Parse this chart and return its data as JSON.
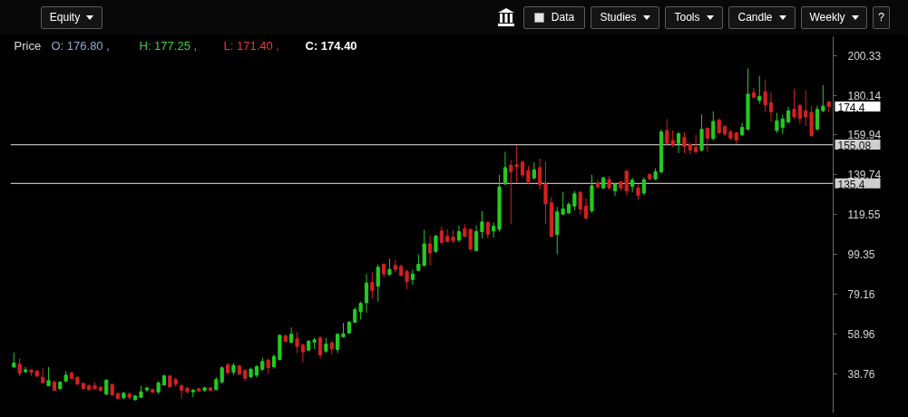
{
  "chart_data": {
    "type": "candlestick",
    "categories": [
      null,
      null,
      null,
      null,
      null,
      null,
      null,
      null,
      null,
      null,
      null,
      null,
      null,
      null,
      null,
      null,
      null,
      null,
      null,
      null,
      null,
      null,
      null,
      null,
      null,
      null,
      null,
      null,
      null,
      null,
      null,
      null,
      null,
      null,
      null,
      null,
      null,
      null,
      null,
      null,
      null,
      null,
      null,
      null,
      null,
      null,
      null,
      null,
      null,
      null,
      null,
      null,
      null,
      null,
      null,
      null,
      null,
      null,
      null,
      null,
      null,
      null,
      null,
      null,
      null,
      null,
      null,
      null,
      null,
      null,
      null,
      null,
      null,
      null,
      null,
      null,
      null,
      null,
      null,
      null,
      null,
      null,
      null,
      null,
      null,
      null,
      null,
      null,
      null,
      null,
      null,
      null,
      null,
      null,
      null,
      null,
      null,
      null,
      null,
      null,
      null,
      null,
      null,
      null,
      null,
      null,
      null,
      null,
      null,
      null,
      null,
      null,
      null,
      null,
      null,
      null,
      null,
      null,
      null,
      null,
      null,
      null,
      null,
      null,
      null,
      null,
      null,
      null,
      null,
      null,
      null,
      null,
      null,
      null,
      null,
      null,
      null,
      null,
      null,
      null,
      null,
      null
    ],
    "ohlc": [
      [
        42.1,
        49.5,
        41.8,
        44.1
      ],
      [
        43.6,
        46.4,
        37.5,
        39.0
      ],
      [
        39.8,
        42.1,
        39.0,
        40.7
      ],
      [
        40.6,
        41.0,
        37.5,
        39.5
      ],
      [
        40.1,
        40.6,
        37.2,
        37.5
      ],
      [
        36.9,
        41.5,
        33.8,
        34.1
      ],
      [
        32.6,
        42.1,
        32.3,
        35.2
      ],
      [
        34.4,
        35.4,
        29.8,
        30.3
      ],
      [
        31.1,
        34.9,
        30.7,
        34.4
      ],
      [
        34.9,
        40.0,
        34.4,
        38.0
      ],
      [
        39.0,
        40.0,
        35.7,
        36.4
      ],
      [
        36.9,
        37.5,
        33.1,
        33.4
      ],
      [
        33.8,
        34.1,
        30.7,
        31.1
      ],
      [
        32.6,
        33.4,
        29.8,
        30.7
      ],
      [
        32.6,
        34.4,
        30.7,
        31.1
      ],
      [
        31.8,
        32.6,
        29.8,
        30.2
      ],
      [
        28.3,
        35.9,
        28.0,
        35.4
      ],
      [
        33.2,
        33.8,
        27.5,
        28.0
      ],
      [
        28.6,
        29.2,
        25.7,
        26.1
      ],
      [
        26.5,
        29.5,
        25.7,
        28.8
      ],
      [
        28.3,
        29.5,
        25.7,
        26.7
      ],
      [
        25.5,
        27.9,
        25.2,
        27.4
      ],
      [
        26.7,
        32.6,
        26.5,
        29.5
      ],
      [
        30.5,
        32.3,
        29.5,
        31.4
      ],
      [
        30.7,
        31.1,
        28.8,
        29.4
      ],
      [
        29.5,
        34.9,
        28.4,
        34.1
      ],
      [
        33.1,
        38.3,
        32.6,
        37.6
      ],
      [
        37.6,
        38.0,
        31.5,
        32.1
      ],
      [
        35.7,
        36.7,
        32.1,
        33.4
      ],
      [
        32.7,
        33.1,
        26.0,
        30.3
      ],
      [
        31.2,
        32.1,
        28.7,
        29.6
      ],
      [
        29.5,
        31.1,
        26.8,
        30.3
      ],
      [
        31.1,
        31.5,
        29.4,
        30.0
      ],
      [
        30.3,
        32.1,
        29.5,
        31.5
      ],
      [
        31.5,
        32.1,
        29.6,
        30.3
      ],
      [
        30.6,
        37.0,
        30.3,
        35.7
      ],
      [
        34.6,
        42.6,
        33.6,
        41.7
      ],
      [
        43.3,
        44.1,
        38.7,
        39.2
      ],
      [
        39.5,
        44.1,
        38.0,
        42.9
      ],
      [
        42.6,
        43.3,
        38.0,
        38.6
      ],
      [
        40.3,
        41.0,
        34.9,
        36.4
      ],
      [
        37.2,
        41.8,
        36.4,
        41.0
      ],
      [
        38.0,
        43.3,
        36.7,
        42.3
      ],
      [
        41.0,
        46.9,
        40.3,
        44.9
      ],
      [
        45.6,
        46.4,
        38.7,
        41.8
      ],
      [
        42.3,
        48.4,
        41.3,
        47.5
      ],
      [
        45.9,
        58.7,
        45.6,
        58.2
      ],
      [
        57.9,
        58.7,
        54.8,
        55.1
      ],
      [
        54.7,
        62.2,
        54.1,
        58.8
      ],
      [
        56.4,
        59.9,
        49.2,
        52.5
      ],
      [
        53.3,
        54.1,
        44.6,
        49.8
      ],
      [
        50.7,
        55.6,
        50.2,
        55.3
      ],
      [
        54.8,
        56.9,
        51.3,
        55.9
      ],
      [
        56.9,
        57.9,
        46.4,
        48.2
      ],
      [
        50.2,
        56.9,
        49.2,
        53.8
      ],
      [
        54.4,
        55.6,
        48.7,
        51.3
      ],
      [
        51.0,
        59.4,
        49.2,
        58.7
      ],
      [
        57.5,
        64.5,
        57.1,
        59.0
      ],
      [
        59.4,
        65.6,
        59.0,
        64.8
      ],
      [
        64.8,
        72.5,
        64.5,
        71.3
      ],
      [
        70.2,
        75.3,
        66.3,
        74.4
      ],
      [
        74.8,
        89.4,
        69.7,
        84.8
      ],
      [
        85.1,
        90.2,
        76.8,
        81.0
      ],
      [
        83.2,
        94.3,
        75.3,
        92.8
      ],
      [
        94.3,
        94.8,
        87.5,
        89.4
      ],
      [
        89.1,
        97.1,
        88.6,
        91.7
      ],
      [
        93.7,
        96.7,
        90.2,
        91.7
      ],
      [
        93.2,
        94.3,
        88.2,
        88.6
      ],
      [
        90.6,
        91.7,
        81.7,
        85.5
      ],
      [
        86.6,
        91.7,
        83.9,
        89.4
      ],
      [
        91.2,
        99.4,
        90.9,
        94.3
      ],
      [
        93.7,
        111.7,
        93.2,
        104.7
      ],
      [
        104.7,
        109.0,
        93.7,
        100.1
      ],
      [
        100.9,
        109.4,
        100.1,
        108.6
      ],
      [
        111.2,
        113.6,
        104.4,
        105.5
      ],
      [
        108.6,
        112.1,
        105.5,
        105.9
      ],
      [
        108.1,
        111.7,
        105.0,
        106.3
      ],
      [
        106.6,
        114.0,
        105.5,
        110.9
      ],
      [
        112.4,
        114.7,
        107.8,
        108.6
      ],
      [
        112.1,
        112.4,
        101.3,
        102.0
      ],
      [
        101.3,
        114.0,
        100.9,
        110.9
      ],
      [
        110.9,
        121.3,
        107.5,
        115.8
      ],
      [
        115.5,
        116.3,
        107.5,
        109.6
      ],
      [
        111.2,
        115.5,
        107.8,
        113.6
      ],
      [
        112.1,
        139.7,
        110.9,
        133.6
      ],
      [
        135.1,
        151.5,
        134.7,
        143.4
      ],
      [
        144.6,
        147.4,
        114.7,
        141.3
      ],
      [
        144.9,
        154.6,
        135.7,
        143.9
      ],
      [
        146.2,
        146.9,
        138.2,
        139.7
      ],
      [
        141.9,
        144.3,
        135.1,
        136.2
      ],
      [
        138.2,
        146.2,
        137.3,
        142.3
      ],
      [
        143.4,
        148.0,
        132.4,
        134.7
      ],
      [
        135.1,
        146.5,
        114.7,
        125.0
      ],
      [
        125.5,
        128.5,
        107.8,
        108.6
      ],
      [
        109.4,
        123.4,
        99.4,
        120.9
      ],
      [
        119.8,
        131.1,
        119.3,
        122.4
      ],
      [
        120.4,
        125.9,
        119.8,
        124.7
      ],
      [
        123.9,
        131.6,
        121.6,
        130.1
      ],
      [
        130.8,
        131.6,
        119.6,
        122.4
      ],
      [
        123.9,
        127.8,
        117.0,
        117.8
      ],
      [
        121.5,
        139.7,
        120.5,
        134.2
      ],
      [
        135.4,
        137.3,
        132.7,
        133.6
      ],
      [
        133.1,
        138.8,
        132.4,
        138.2
      ],
      [
        137.3,
        139.3,
        132.1,
        133.1
      ],
      [
        131.6,
        135.4,
        129.0,
        135.1
      ],
      [
        136.2,
        136.7,
        131.6,
        133.1
      ],
      [
        141.6,
        142.3,
        129.3,
        131.6
      ],
      [
        133.9,
        138.2,
        130.8,
        137.0
      ],
      [
        133.1,
        135.1,
        127.0,
        129.3
      ],
      [
        130.5,
        138.5,
        129.3,
        137.3
      ],
      [
        140.0,
        140.3,
        137.0,
        137.7
      ],
      [
        137.7,
        143.1,
        137.0,
        141.3
      ],
      [
        141.3,
        162.8,
        140.3,
        161.5
      ],
      [
        162.3,
        168.0,
        154.6,
        155.7
      ],
      [
        157.2,
        162.3,
        153.8,
        155.1
      ],
      [
        155.7,
        161.5,
        150.8,
        160.7
      ],
      [
        158.8,
        161.5,
        150.8,
        154.2
      ],
      [
        155.1,
        156.1,
        150.0,
        152.3
      ],
      [
        153.8,
        160.0,
        150.5,
        151.5
      ],
      [
        152.3,
        170.4,
        151.5,
        162.8
      ],
      [
        163.4,
        163.8,
        151.5,
        158.4
      ],
      [
        158.2,
        172.0,
        157.2,
        166.9
      ],
      [
        167.6,
        168.4,
        160.5,
        161.1
      ],
      [
        164.2,
        165.1,
        159.5,
        160.5
      ],
      [
        161.5,
        162.6,
        157.4,
        158.4
      ],
      [
        161.1,
        161.5,
        155.4,
        157.4
      ],
      [
        160.0,
        166.1,
        159.5,
        163.8
      ],
      [
        163.0,
        193.8,
        162.3,
        180.7
      ],
      [
        181.5,
        183.8,
        178.4,
        179.2
      ],
      [
        177.6,
        190.0,
        175.8,
        179.5
      ],
      [
        182.0,
        188.1,
        171.5,
        175.3
      ],
      [
        176.4,
        181.5,
        166.6,
        171.8
      ],
      [
        162.3,
        171.2,
        161.1,
        167.2
      ],
      [
        163.8,
        170.3,
        160.5,
        168.1
      ],
      [
        166.6,
        174.3,
        165.7,
        172.3
      ],
      [
        173.0,
        183.5,
        168.4,
        169.2
      ],
      [
        174.9,
        176.1,
        165.7,
        168.4
      ],
      [
        172.3,
        182.6,
        164.6,
        169.2
      ],
      [
        171.5,
        174.6,
        159.2,
        159.6
      ],
      [
        163.0,
        174.9,
        162.3,
        173.0
      ],
      [
        172.3,
        185.3,
        171.5,
        174.6
      ],
      [
        176.8,
        177.25,
        171.4,
        174.4
      ]
    ],
    "colors": [
      "#22cc22",
      "#d42020",
      "#22cc22",
      "#d42020",
      "#d42020",
      "#d42020",
      "#22cc22",
      "#d42020",
      "#22cc22",
      "#22cc22",
      "#d42020",
      "#d42020",
      "#d42020",
      "#d42020",
      "#d42020",
      "#d42020",
      "#22cc22",
      "#d42020",
      "#d42020",
      "#22cc22",
      "#d42020",
      "#22cc22",
      "#22cc22",
      "#22cc22",
      "#d42020",
      "#22cc22",
      "#22cc22",
      "#d42020",
      "#d42020",
      "#d42020",
      "#d42020",
      "#22cc22",
      "#d42020",
      "#22cc22",
      "#d42020",
      "#22cc22",
      "#22cc22",
      "#d42020",
      "#22cc22",
      "#d42020",
      "#d42020",
      "#22cc22",
      "#22cc22",
      "#22cc22",
      "#d42020",
      "#22cc22",
      "#22cc22",
      "#d42020",
      "#22cc22",
      "#d42020",
      "#d42020",
      "#22cc22",
      "#22cc22",
      "#d42020",
      "#22cc22",
      "#d42020",
      "#22cc22",
      "#22cc22",
      "#22cc22",
      "#22cc22",
      "#22cc22",
      "#22cc22",
      "#d42020",
      "#22cc22",
      "#d42020",
      "#22cc22",
      "#d42020",
      "#d42020",
      "#d42020",
      "#22cc22",
      "#22cc22",
      "#22cc22",
      "#d42020",
      "#22cc22",
      "#d42020",
      "#d42020",
      "#d42020",
      "#22cc22",
      "#d42020",
      "#d42020",
      "#22cc22",
      "#22cc22",
      "#d42020",
      "#22cc22",
      "#22cc22",
      "#22cc22",
      "#d42020",
      "#d42020",
      "#d42020",
      "#d42020",
      "#22cc22",
      "#d42020",
      "#d42020",
      "#d42020",
      "#22cc22",
      "#22cc22",
      "#22cc22",
      "#22cc22",
      "#d42020",
      "#d42020",
      "#22cc22",
      "#d42020",
      "#22cc22",
      "#d42020",
      "#22cc22",
      "#d42020",
      "#d42020",
      "#22cc22",
      "#d42020",
      "#22cc22",
      "#d42020",
      "#22cc22",
      "#22cc22",
      "#d42020",
      "#d42020",
      "#22cc22",
      "#d42020",
      "#d42020",
      "#d42020",
      "#22cc22",
      "#d42020",
      "#22cc22",
      "#d42020",
      "#d42020",
      "#d42020",
      "#d42020",
      "#22cc22",
      "#22cc22",
      "#d42020",
      "#22cc22",
      "#d42020",
      "#d42020",
      "#22cc22",
      "#22cc22",
      "#22cc22",
      "#d42020",
      "#d42020",
      "#d42020",
      "#d42020",
      "#22cc22",
      "#22cc22",
      "#d42020"
    ],
    "ylim": [
      18.8,
      209.9
    ],
    "yticks": [
      38.76,
      58.96,
      79.16,
      99.35,
      119.55,
      139.74,
      159.94,
      180.14,
      200.33
    ],
    "tick_labels": "y",
    "grid": false,
    "ref_lines": [
      {
        "axis": "y",
        "value": 155.08,
        "label": "155.08",
        "color": "#b8b8b8"
      },
      {
        "axis": "y",
        "value": 135.4,
        "label": "135.4",
        "color": "#b8b8b8"
      }
    ],
    "annotations": [
      "Equity",
      "Data",
      "Studies",
      "Tools",
      "Candle",
      "Weekly",
      "?",
      "Price",
      "O: 176.80 ,",
      "H: 177.25 ,",
      "L: 171.40 ,",
      "C: 174.40",
      "174.4"
    ]
  }
}
